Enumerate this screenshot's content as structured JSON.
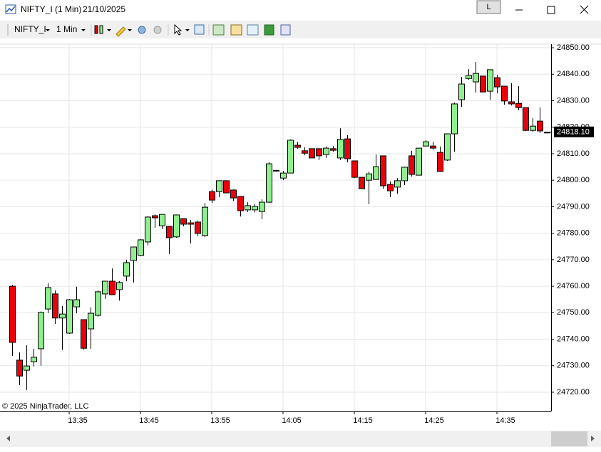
{
  "window": {
    "title": "NIFTY_I (1 Min)",
    "date": "21/10/2025",
    "button": "L",
    "instrument": "NIFTY_I",
    "interval": "1 Min"
  },
  "chart_data": {
    "type": "candlestick",
    "watermark": "© 2025 NinjaTrader, LLC",
    "up_color": "#90ee90",
    "down_color": "#e8000b",
    "outline_color": "#000000",
    "grid": true,
    "categories": [
      null,
      null,
      null,
      null,
      null,
      null,
      null,
      null,
      null,
      "13:35",
      null,
      null,
      null,
      null,
      null,
      null,
      null,
      null,
      null,
      "13:45",
      null,
      null,
      null,
      null,
      null,
      null,
      null,
      null,
      null,
      "13:55",
      null,
      null,
      null,
      null,
      null,
      null,
      null,
      null,
      null,
      "14:05",
      null,
      null,
      null,
      null,
      null,
      null,
      null,
      null,
      null,
      "14:15",
      null,
      null,
      null,
      null,
      null,
      null,
      null,
      null,
      null,
      "14:25",
      null,
      null,
      null,
      null,
      null,
      null,
      null,
      null,
      null,
      "14:35",
      null,
      null,
      null,
      null,
      null,
      null
    ],
    "open": [
      24760,
      24732.1,
      24728.3,
      24731.5,
      24736.4,
      24751.4,
      24757.1,
      24748,
      24742.3,
      24752.2,
      24747.4,
      24743.9,
      24749,
      24757.1,
      24761.9,
      24758.7,
      24763.8,
      24769.7,
      24771.6,
      24776.7,
      24786.6,
      24782.8,
      24782.6,
      24778.6,
      24785.5,
      24783.9,
      24784.2,
      24779.1,
      24795.7,
      24795.7,
      24799.8,
      24796.3,
      24793.9,
      24788.8,
      24788.8,
      24788.2,
      24791.7,
      24803.7,
      24800.8,
      24802.7,
      24813.2,
      24811.1,
      24811.9,
      24811.9,
      24809.7,
      24811.9,
      24808.4,
      24815.6,
      24807.3,
      24801.1,
      24800,
      24800.3,
      24809.2,
      24798.4,
      24797.4,
      24799.8,
      24809.2,
      24801.9,
      24812.9,
      24812.9,
      24810.5,
      24807.6,
      24817.5,
      24830.4,
      24838.4,
      24837.1,
      24839.3,
      24833.6,
      24838.7,
      24835.5,
      24829.6,
      24829,
      24827.4,
      24818.8,
      24822.3,
      24818.1
    ],
    "high": [
      24760.5,
      24735,
      24737.7,
      24736.4,
      24750.5,
      24761.1,
      24758.4,
      24752.5,
      24755.2,
      24759.8,
      24747.4,
      24752,
      24758.4,
      24761.9,
      24766.7,
      24761.9,
      24770,
      24774.8,
      24777.8,
      24786.4,
      24787.1,
      24787.1,
      24782.6,
      24786.9,
      24785.5,
      24785,
      24784.7,
      24791.4,
      24796.5,
      24799.8,
      24799.8,
      24796.5,
      24793.9,
      24791.7,
      24791.1,
      24792.8,
      24806.8,
      24803.9,
      24803.5,
      24815.4,
      24814.5,
      24812.4,
      24811.9,
      24811.9,
      24812.7,
      24812.9,
      24819.6,
      24817,
      24807.3,
      24801.1,
      24803.2,
      24809.7,
      24809.2,
      24799.5,
      24800.8,
      24805.1,
      24811.1,
      24812.1,
      24815.1,
      24814.5,
      24812.7,
      24817.5,
      24829.3,
      24839,
      24841.9,
      24844.6,
      24839.3,
      24841.7,
      24839.8,
      24835.5,
      24836.6,
      24835.5,
      24827.4,
      24823.4,
      24827.4,
      24818.1
    ],
    "low": [
      24733.7,
      24722.7,
      24720.8,
      24729.7,
      24730,
      24749.8,
      24745.8,
      24736,
      24742,
      24749.8,
      24736.1,
      24736.4,
      24748.5,
      24755.2,
      24756.8,
      24754.6,
      24761.9,
      24761.4,
      24771.3,
      24775.4,
      24782,
      24781.5,
      24772.1,
      24778.3,
      24782.6,
      24776.1,
      24779,
      24778.5,
      24791.4,
      24793.6,
      24795.2,
      24792.2,
      24786.3,
      24788,
      24787.8,
      24785.3,
      24791.4,
      24803.3,
      24800,
      24802.7,
      24811.9,
      24809.4,
      24808.4,
      24807.6,
      24808.4,
      24810.8,
      24807.6,
      24806.8,
      24800.8,
      24796.8,
      24790.9,
      24800.3,
      24796.8,
      24793.6,
      24794.9,
      24798.2,
      24801.4,
      24801.9,
      24812.9,
      24811.6,
      24803.3,
      24807.3,
      24810.8,
      24827.7,
      24837.9,
      24833.1,
      24833.3,
      24830.4,
      24832.8,
      24828.5,
      24828.2,
      24826.4,
      24818.5,
      24818.3,
      24817.8,
      24818.1
    ],
    "close": [
      24738.8,
      24726.1,
      24729.9,
      24733.2,
      24750.1,
      24759.5,
      24748,
      24749.5,
      24754.9,
      24754.9,
      24736.6,
      24749.8,
      24757.9,
      24761.9,
      24756.8,
      24761.4,
      24768.9,
      24774.8,
      24777.5,
      24786.1,
      24785.8,
      24787.1,
      24778.3,
      24786.9,
      24783.4,
      24783.4,
      24779.9,
      24789.8,
      24792.5,
      24799.8,
      24795.2,
      24793.3,
      24788.5,
      24790.4,
      24790.1,
      24791.7,
      24806.2,
      24803.5,
      24802.7,
      24815.1,
      24812.4,
      24810.2,
      24808.4,
      24809.2,
      24812.1,
      24811.3,
      24815.4,
      24808.1,
      24801.1,
      24796.8,
      24802.4,
      24805.1,
      24797.9,
      24796,
      24799.8,
      24804.9,
      24802.2,
      24812.1,
      24814.5,
      24812.1,
      24803.3,
      24817.5,
      24828.8,
      24836.3,
      24839.5,
      24840.3,
      24833.3,
      24841.7,
      24835.2,
      24829.9,
      24828.8,
      24827.4,
      24818.8,
      24820.4,
      24818.6,
      24818.1
    ],
    "last_price": {
      "value": 24818.1,
      "label": "24818.10"
    },
    "ylim": [
      24712.75,
      24851.35
    ],
    "yticks": [
      {
        "value": 24720,
        "label": "24720.00"
      },
      {
        "value": 24730,
        "label": "24730.00"
      },
      {
        "value": 24740,
        "label": "24740.00"
      },
      {
        "value": 24750,
        "label": "24750.00"
      },
      {
        "value": 24760,
        "label": "24760.00"
      },
      {
        "value": 24770,
        "label": "24770.00"
      },
      {
        "value": 24780,
        "label": "24780.00"
      },
      {
        "value": 24790,
        "label": "24790.00"
      },
      {
        "value": 24800,
        "label": "24800.00"
      },
      {
        "value": 24810,
        "label": "24810.00"
      },
      {
        "value": 24820,
        "label": "24820.00"
      },
      {
        "value": 24830,
        "label": "24830.00"
      },
      {
        "value": 24840,
        "label": "24840.00"
      },
      {
        "value": 24850,
        "label": "24850.00"
      }
    ]
  }
}
